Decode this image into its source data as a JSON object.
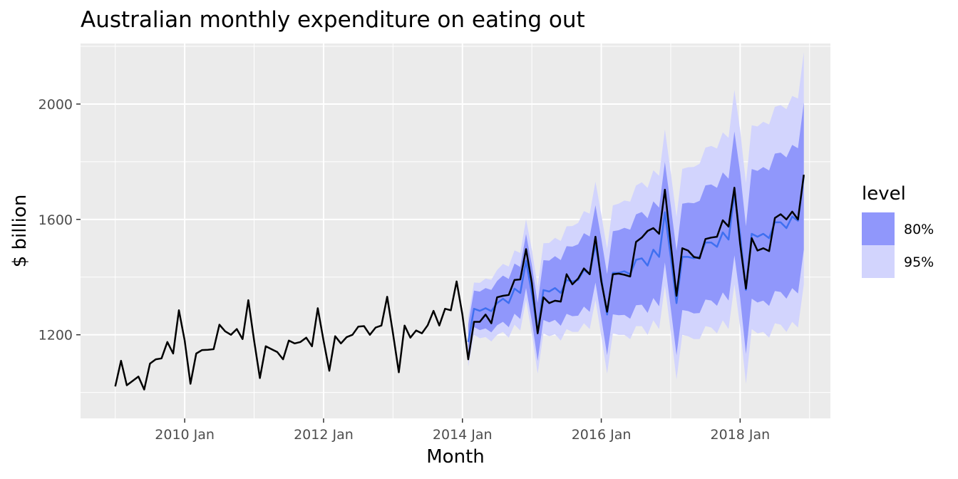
{
  "chart_data": {
    "type": "line",
    "title": "Australian monthly expenditure on eating out",
    "xlabel": "Month",
    "ylabel": "$ billion",
    "x_tick_labels": [
      "2010 Jan",
      "2012 Jan",
      "2014 Jan",
      "2016 Jan",
      "2018 Jan"
    ],
    "x_tick_years": [
      2010,
      2012,
      2014,
      2016,
      2018
    ],
    "x_range": [
      2008.5,
      2019.3
    ],
    "y_ticks": [
      1200,
      1600,
      2000
    ],
    "ylim": [
      910,
      2210
    ],
    "grid": true,
    "legend_title": "level",
    "legend_position": "right",
    "legend": [
      {
        "label": "80%",
        "color": "#9097fb"
      },
      {
        "label": "95%",
        "color": "#d2d4fd"
      }
    ],
    "colors": {
      "panel": "#ebebeb",
      "actual_line": "#000000",
      "forecast_line": "#3f6ff0",
      "band80": "#9097fb",
      "band95": "#d2d4fd"
    },
    "actual": {
      "start": "2009-01",
      "values": [
        1021,
        1110,
        1025,
        1040,
        1055,
        1010,
        1100,
        1115,
        1118,
        1175,
        1135,
        1285,
        1180,
        1030,
        1135,
        1147,
        1148,
        1150,
        1235,
        1212,
        1200,
        1220,
        1185,
        1320,
        1180,
        1050,
        1160,
        1150,
        1140,
        1115,
        1180,
        1170,
        1175,
        1190,
        1160,
        1292,
        1180,
        1075,
        1195,
        1170,
        1192,
        1200,
        1228,
        1230,
        1200,
        1225,
        1232,
        1332,
        1205,
        1070,
        1232,
        1190,
        1215,
        1205,
        1233,
        1283,
        1232,
        1290,
        1285,
        1385,
        1270,
        1115,
        1245,
        1245,
        1270,
        1240,
        1330,
        1335,
        1338,
        1390,
        1392,
        1497,
        1380,
        1205,
        1330,
        1310,
        1318,
        1315,
        1410,
        1375,
        1395,
        1430,
        1410,
        1540,
        1385,
        1280,
        1410,
        1412,
        1408,
        1402,
        1522,
        1537,
        1560,
        1570,
        1550,
        1703,
        1515,
        1335,
        1500,
        1492,
        1470,
        1465,
        1532,
        1537,
        1540,
        1597,
        1575,
        1710,
        1515,
        1360,
        1535,
        1492,
        1500,
        1490,
        1605,
        1618,
        1600,
        1627,
        1600,
        1755
      ]
    },
    "forecast": {
      "start": "2014-02",
      "mean": [
        1175,
        1290,
        1283,
        1292,
        1282,
        1310,
        1325,
        1310,
        1360,
        1345,
        1456,
        1345,
        1210,
        1355,
        1350,
        1362,
        1345,
        1390,
        1385,
        1390,
        1425,
        1410,
        1515,
        1395,
        1270,
        1415,
        1415,
        1420,
        1410,
        1460,
        1465,
        1440,
        1495,
        1470,
        1625,
        1470,
        1310,
        1470,
        1470,
        1465,
        1470,
        1520,
        1520,
        1505,
        1555,
        1530,
        1690,
        1545,
        1355,
        1550,
        1540,
        1550,
        1535,
        1590,
        1590,
        1570,
        1610,
        1595,
        1750
      ],
      "lo80_start": 1115,
      "lo80_end": 1495,
      "hi80_start": 1235,
      "hi80_end": 2005,
      "lo95_start": 1090,
      "lo95_end": 1375,
      "hi95_start": 1260,
      "hi95_end": 2180
    }
  }
}
